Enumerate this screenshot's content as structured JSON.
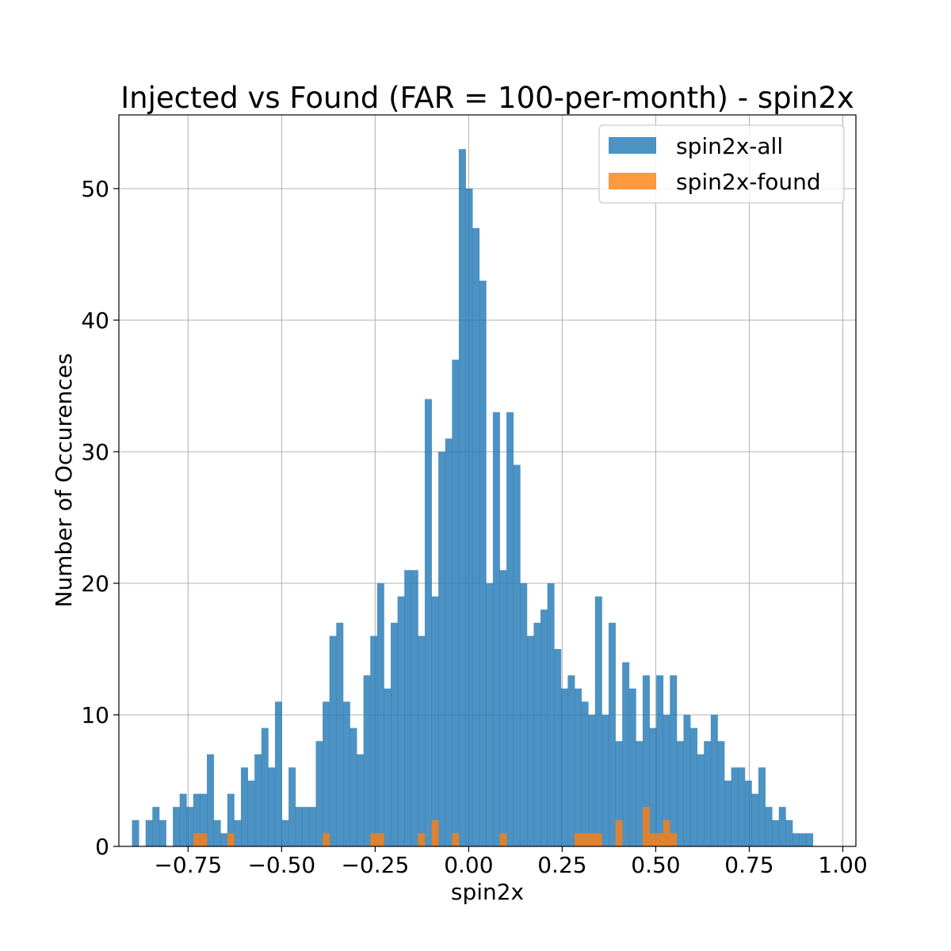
{
  "chart_data": {
    "type": "bar",
    "title": "Injected vs Found (FAR = 100-per-month) - spin2x",
    "xlabel": "spin2x",
    "ylabel": "Number of Occurences",
    "xlim": [
      -0.935,
      1.035
    ],
    "ylim": [
      0,
      55.6
    ],
    "grid": true,
    "legend_position": "top-right",
    "xticks": [
      -0.75,
      -0.5,
      -0.25,
      0.0,
      0.25,
      0.5,
      0.75,
      1.0
    ],
    "xtick_labels": [
      "−0.75",
      "−0.50",
      "−0.25",
      "0.00",
      "0.25",
      "0.50",
      "0.75",
      "1.00"
    ],
    "yticks": [
      0,
      10,
      20,
      30,
      40,
      50
    ],
    "ytick_labels": [
      "0",
      "10",
      "20",
      "30",
      "40",
      "50"
    ],
    "bins": {
      "start": -0.9,
      "width": 0.0182,
      "count": 100
    },
    "series": [
      {
        "name": "spin2x-all",
        "color": "#1f77b4",
        "opacity": 0.8,
        "values": [
          2,
          0,
          2,
          3,
          2,
          0,
          3,
          4,
          3,
          4,
          4,
          7,
          2,
          1,
          4,
          2,
          6,
          5,
          7,
          9,
          6,
          11,
          2,
          6,
          3,
          3,
          3,
          8,
          11,
          16,
          17,
          11,
          9,
          7,
          13,
          16,
          20,
          12,
          17,
          19,
          21,
          21,
          16,
          34,
          19,
          30,
          31,
          37,
          53,
          50,
          47,
          43,
          20,
          33,
          21,
          33,
          29,
          20,
          16,
          17,
          18,
          20,
          15,
          12,
          13,
          12,
          11,
          10,
          19,
          10,
          17,
          8,
          14,
          12,
          8,
          13,
          9,
          13,
          10,
          13,
          8,
          10,
          9,
          7,
          8,
          10,
          8,
          5,
          6,
          6,
          5,
          4,
          6,
          3,
          2,
          3,
          2,
          1,
          1,
          1
        ]
      },
      {
        "name": "spin2x-found",
        "color": "#ff7f0e",
        "opacity": 0.8,
        "values": [
          0,
          0,
          0,
          0,
          0,
          0,
          0,
          0,
          0,
          1,
          1,
          0,
          0,
          0,
          1,
          0,
          0,
          0,
          0,
          0,
          0,
          0,
          0,
          0,
          0,
          0,
          0,
          0,
          1,
          0,
          0,
          0,
          0,
          0,
          0,
          1,
          1,
          0,
          0,
          0,
          0,
          0,
          1,
          0,
          2,
          0,
          0,
          1,
          0,
          0,
          0,
          0,
          0,
          0,
          1,
          0,
          0,
          0,
          0,
          0,
          0,
          0,
          0,
          0,
          0,
          1,
          1,
          1,
          1,
          0,
          0,
          2,
          0,
          0,
          0,
          3,
          1,
          1,
          2,
          1,
          0,
          0,
          0,
          0,
          0,
          0,
          0,
          0,
          0,
          0,
          0,
          0,
          0,
          0,
          0,
          0,
          0,
          0,
          0,
          0
        ]
      }
    ]
  }
}
